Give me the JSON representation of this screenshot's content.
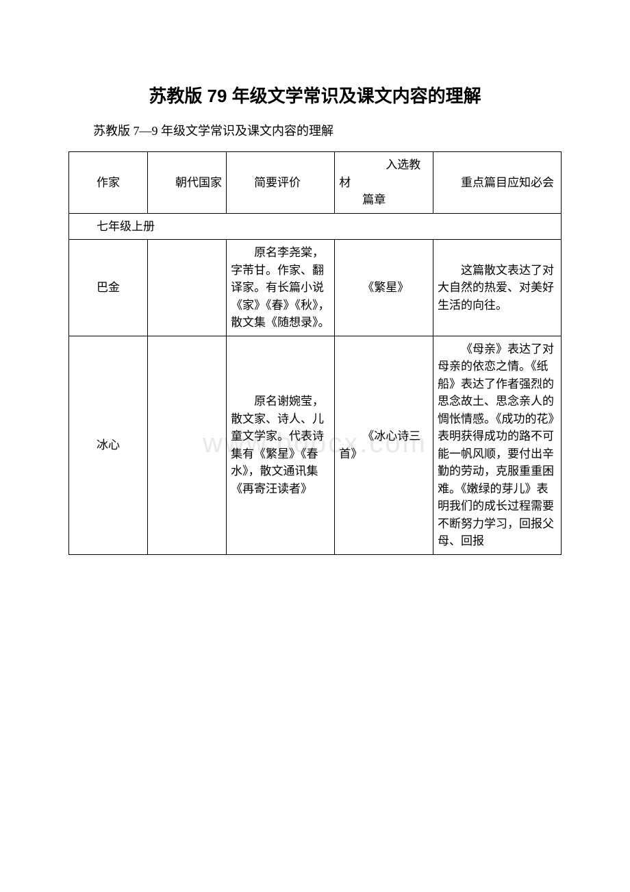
{
  "title": "苏教版 79 年级文学常识及课文内容的理解",
  "subtitle": "苏教版 7—9 年级文学常识及课文内容的理解",
  "watermark": "www.bdocx.com",
  "table": {
    "headers": {
      "author": "作家",
      "dynasty": "朝代国家",
      "evaluation": "简要评价",
      "selected": "入选教材",
      "chapters": "篇章",
      "keypoints": "重点篇目应知必会"
    },
    "section": "七年级上册",
    "rows": [
      {
        "author": "巴金",
        "dynasty": "",
        "evaluation": "原名李尧棠，字芾甘。作家、翻译家。有长篇小说《家》《春》《秋》，散文集《随想录》。",
        "selected": "《繁星》",
        "keypoints": "这篇散文表达了对大自然的热爱、对美好生活的向往。"
      },
      {
        "author": "冰心",
        "dynasty": "",
        "evaluation": "原名谢婉莹，散文家、诗人、儿童文学家。代表诗集有《繁星》《春水》，散文通讯集《再寄汪读者》",
        "selected": "《冰心诗三首》",
        "keypoints": "《母亲》表达了对母亲的依恋之情。《纸船》表达了作者强烈的思念故土、思念亲人的惆怅情感。《成功的花》表明获得成功的路不可能一帆风顺，要付出辛勤的劳动，克服重重困难。《嫩绿的芽儿》表明我们的成长过程需要不断努力学习，回报父母、回报"
      }
    ]
  }
}
